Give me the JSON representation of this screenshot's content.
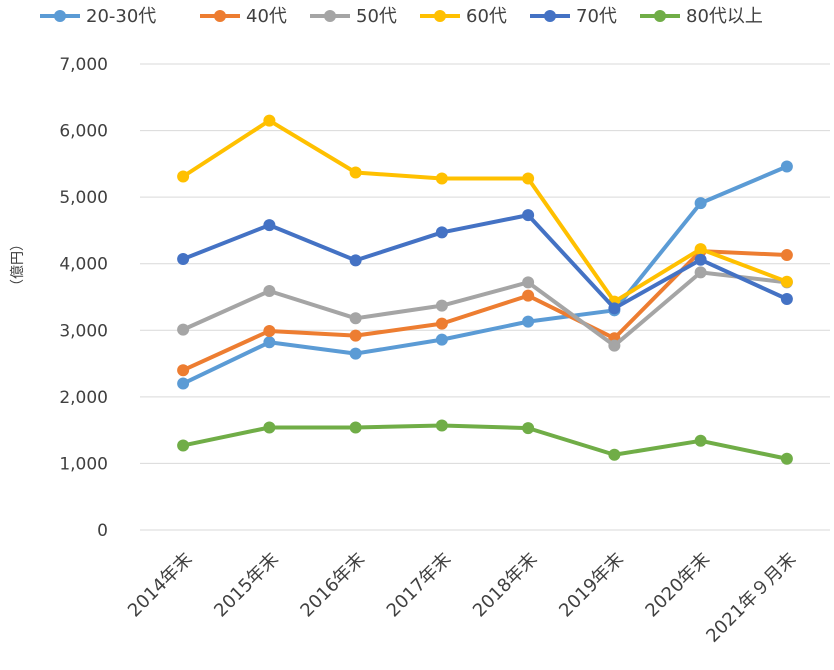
{
  "chart_data": {
    "type": "line",
    "title": "",
    "xlabel": "",
    "ylabel": "（億円）",
    "ylim": [
      0,
      7000
    ],
    "yticks": [
      "0",
      "1,000",
      "2,000",
      "3,000",
      "4,000",
      "5,000",
      "6,000",
      "7,000"
    ],
    "grid": true,
    "legend_position": "top",
    "categories": [
      "2014年末",
      "2015年末",
      "2016年末",
      "2017年末",
      "2018年末",
      "2019年末",
      "2020年末",
      "2021年９月末"
    ],
    "series": [
      {
        "name": "20-30代",
        "color": "#5B9BD5",
        "values": [
          2200,
          2820,
          2650,
          2860,
          3130,
          3300,
          4910,
          5460
        ]
      },
      {
        "name": "40代",
        "color": "#ED7D31",
        "values": [
          2400,
          2990,
          2920,
          3100,
          3520,
          2880,
          4190,
          4130
        ]
      },
      {
        "name": "50代",
        "color": "#A5A5A5",
        "values": [
          3010,
          3590,
          3180,
          3370,
          3720,
          2770,
          3870,
          3720
        ]
      },
      {
        "name": "60代",
        "color": "#FFC000",
        "values": [
          5310,
          6150,
          5370,
          5280,
          5280,
          3430,
          4220,
          3730
        ]
      },
      {
        "name": "70代",
        "color": "#4472C4",
        "values": [
          4070,
          4580,
          4050,
          4470,
          4730,
          3330,
          4060,
          3470
        ]
      },
      {
        "name": "80代以上",
        "color": "#70AD47",
        "values": [
          1270,
          1540,
          1540,
          1570,
          1530,
          1130,
          1340,
          1070
        ]
      }
    ]
  }
}
